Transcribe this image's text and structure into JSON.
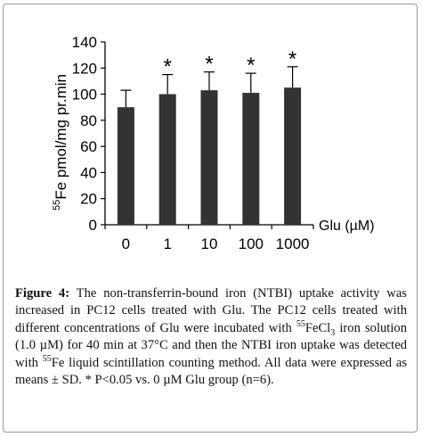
{
  "chart_data": {
    "type": "bar",
    "categories": [
      "0",
      "1",
      "10",
      "100",
      "1000"
    ],
    "values": [
      90,
      100,
      103,
      101,
      105
    ],
    "errors": [
      13,
      15,
      14,
      15,
      16
    ],
    "significance": [
      "",
      "*",
      "*",
      "*",
      "*"
    ],
    "ylim": [
      0,
      140
    ],
    "yticks": [
      0,
      20,
      40,
      60,
      80,
      100,
      120,
      140
    ],
    "ylabel_sup": "55",
    "ylabel": "Fe pmol/mg pr.min",
    "xlabel": "Glu (µM)",
    "bar_color": "#333333",
    "grid": false
  },
  "caption": {
    "label": "Figure 4:",
    "part1": " The non-transferrin-bound iron (NTBI) uptake activity was increased in PC12 cells treated with Glu. The PC12 cells treated with different concentrations of Glu were incubated with ",
    "sup1": "55",
    "part2": "FeCl",
    "sub1": "3",
    "part3": " iron solution (1.0 µM) for 40 min at 37°C and then the NTBI iron uptake was detected with ",
    "sup2": "55",
    "part4": "Fe liquid scintillation counting method. All data were expressed as means ± SD. * P<0.05 vs. 0 µM Glu group (n=6)."
  }
}
